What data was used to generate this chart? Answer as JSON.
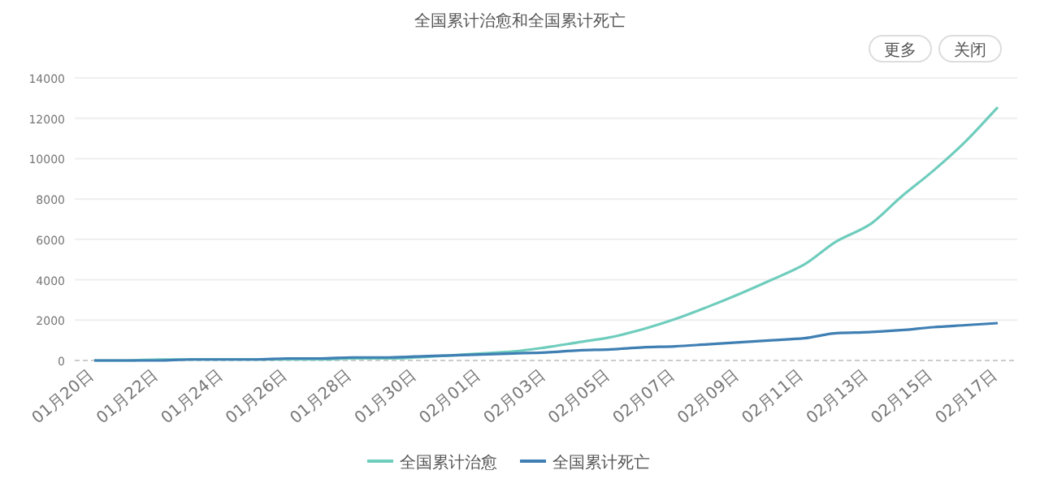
{
  "chart_data": {
    "type": "line",
    "title": "全国累计治愈和全国累计死亡",
    "annotations": [
      "更多",
      "关闭"
    ],
    "categories": [
      "01月20日",
      null,
      "01月22日",
      null,
      "01月24日",
      null,
      "01月26日",
      null,
      "01月28日",
      null,
      "01月30日",
      null,
      "02月01日",
      null,
      "02月03日",
      null,
      "02月05日",
      null,
      "02月07日",
      null,
      "02月09日",
      null,
      "02月11日",
      null,
      "02月13日",
      null,
      "02月15日",
      null,
      "02月17日"
    ],
    "series": [
      {
        "name": "全国累计治愈",
        "color": "#6fcdbd",
        "values": [
          0,
          0,
          50,
          50,
          50,
          50,
          50,
          50,
          100,
          100,
          150,
          250,
          350,
          450,
          650,
          900,
          1150,
          1550,
          2050,
          2650,
          3300,
          4000,
          4750,
          5900,
          6700,
          8100,
          9400,
          10850,
          12550
        ]
      },
      {
        "name": "全国累计死亡",
        "color": "#3f7fb3",
        "values": [
          0,
          0,
          0,
          50,
          50,
          50,
          100,
          100,
          150,
          150,
          200,
          250,
          300,
          350,
          400,
          500,
          550,
          650,
          700,
          800,
          900,
          1000,
          1100,
          1350,
          1400,
          1500,
          1650,
          1750,
          1850
        ]
      }
    ],
    "ylim": [
      0,
      14000
    ],
    "yticks": [
      0,
      2000,
      4000,
      6000,
      8000,
      10000,
      12000,
      14000
    ],
    "grid": "y",
    "legend": "bottom",
    "marker": "none",
    "line_style": "solid"
  }
}
